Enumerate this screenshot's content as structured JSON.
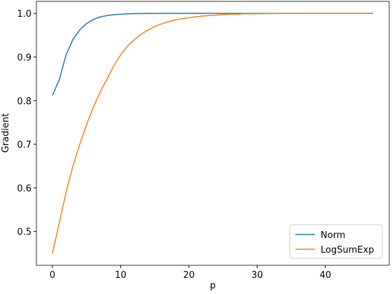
{
  "chart_data": {
    "type": "line",
    "xlabel": "p",
    "ylabel": "Gradient",
    "x": [
      0,
      1,
      2,
      3,
      4,
      5,
      6,
      7,
      8,
      9,
      10,
      11,
      12,
      13,
      14,
      15,
      16,
      17,
      18,
      19,
      20,
      21,
      22,
      23,
      24,
      25,
      26,
      27,
      28,
      29,
      30,
      31,
      32,
      33,
      34,
      35,
      36,
      37,
      38,
      39,
      40,
      41,
      42,
      43,
      44,
      45,
      46,
      47
    ],
    "series": [
      {
        "name": "Norm",
        "color": "#1f77b4",
        "values": [
          0.812,
          0.848,
          0.905,
          0.94,
          0.962,
          0.977,
          0.986,
          0.992,
          0.995,
          0.997,
          0.998,
          0.999,
          0.9995,
          0.9997,
          0.9998,
          0.9999,
          1,
          1,
          1,
          1,
          1,
          1,
          1,
          1,
          1,
          1,
          1,
          1,
          1,
          1,
          1,
          1,
          1,
          1,
          1,
          1,
          1,
          1,
          1,
          1,
          1,
          1,
          1,
          1,
          1,
          1,
          1,
          1
        ]
      },
      {
        "name": "LogSumExp",
        "color": "#ff7f0e",
        "values": [
          0.45,
          0.52,
          0.59,
          0.65,
          0.7,
          0.745,
          0.785,
          0.82,
          0.85,
          0.88,
          0.905,
          0.925,
          0.94,
          0.952,
          0.962,
          0.97,
          0.976,
          0.981,
          0.985,
          0.988,
          0.99,
          0.992,
          0.994,
          0.995,
          0.996,
          0.997,
          0.998,
          0.998,
          0.999,
          0.999,
          0.9993,
          0.9995,
          0.9996,
          0.9997,
          0.9998,
          0.9998,
          0.9999,
          0.9999,
          1,
          1,
          1,
          1,
          1,
          1,
          1,
          1,
          1,
          1
        ]
      }
    ],
    "xlim": [
      -2.35,
      49.35
    ],
    "ylim": [
      0.4225,
      1.0275
    ],
    "xticks": [
      0,
      10,
      20,
      30,
      40
    ],
    "yticks": [
      0.5,
      0.6,
      0.7,
      0.8,
      0.9,
      {
        "value": 1,
        "label": "1.0"
      }
    ],
    "legend": "lower right"
  }
}
